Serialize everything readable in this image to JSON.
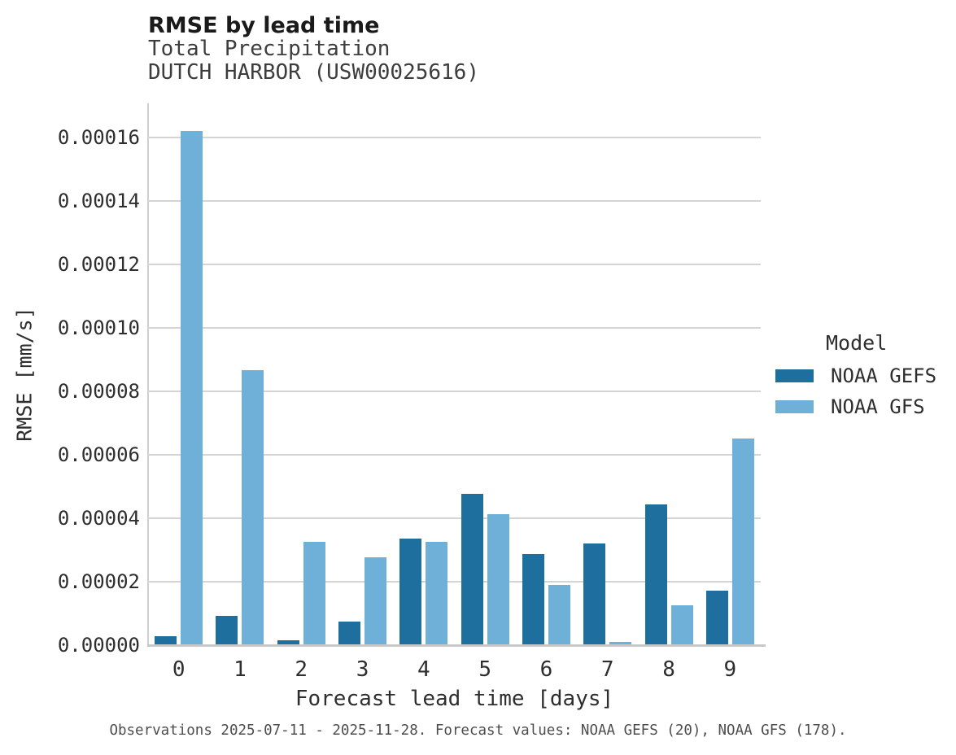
{
  "chart_data": {
    "type": "bar",
    "title": "RMSE by lead time",
    "subtitle1": "Total Precipitation",
    "subtitle2": "DUTCH HARBOR (USW00025616)",
    "xlabel": "Forecast lead time [days]",
    "ylabel": "RMSE [mm/s]",
    "categories": [
      "0",
      "1",
      "2",
      "3",
      "4",
      "5",
      "6",
      "7",
      "8",
      "9"
    ],
    "series": [
      {
        "name": "NOAA GEFS",
        "color": "#1e6e9e",
        "values": [
          2.7e-06,
          9.2e-06,
          1.6e-06,
          7.5e-06,
          3.37e-05,
          4.77e-05,
          2.88e-05,
          3.21e-05,
          4.44e-05,
          1.72e-05
        ]
      },
      {
        "name": "NOAA GFS",
        "color": "#6fb0d8",
        "values": [
          0.000162,
          8.68e-05,
          3.26e-05,
          2.77e-05,
          3.26e-05,
          4.14e-05,
          1.9e-05,
          9e-07,
          1.26e-05,
          6.52e-05
        ]
      }
    ],
    "ylim": [
      0,
      0.0001708
    ],
    "yticks": [
      0,
      2e-05,
      4e-05,
      6e-05,
      8e-05,
      0.0001,
      0.00012,
      0.00014,
      0.00016
    ],
    "ytick_labels": [
      "0.00000",
      "0.00002",
      "0.00004",
      "0.00006",
      "0.00008",
      "0.00010",
      "0.00012",
      "0.00014",
      "0.00016"
    ],
    "grid": true,
    "legend_title": "Model",
    "legend_position": "right",
    "caption": "Observations 2025-07-11 - 2025-11-28. Forecast values: NOAA GEFS (20), NOAA GFS (178)."
  }
}
